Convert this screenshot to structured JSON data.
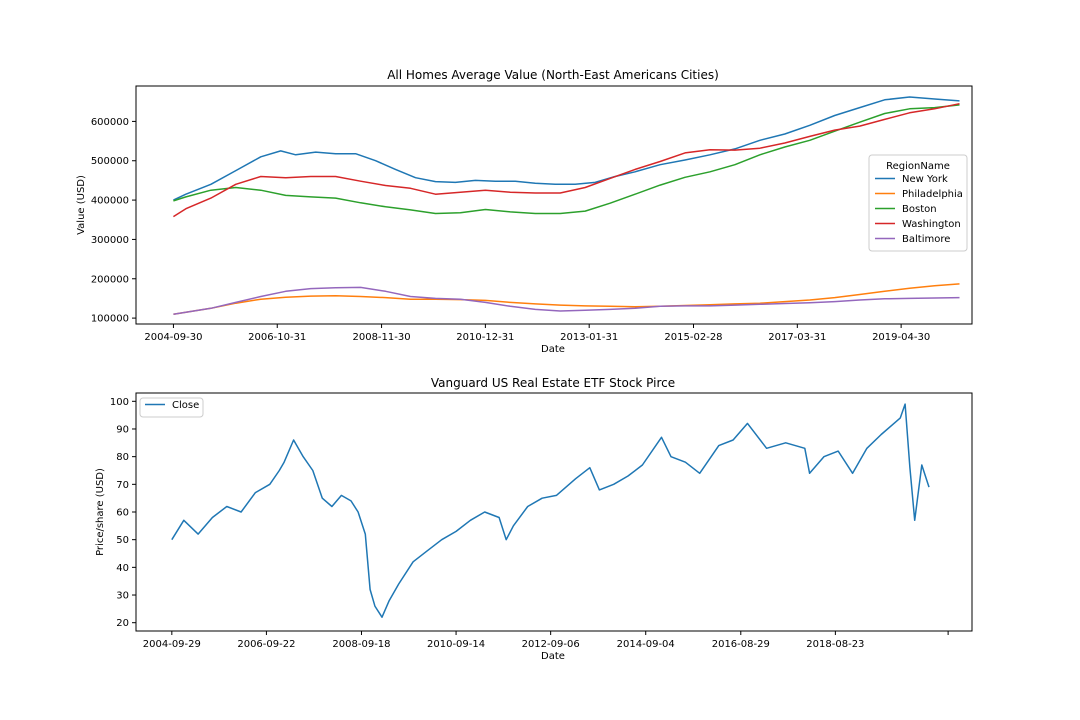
{
  "chart_data": [
    {
      "type": "line",
      "title": "All Homes Average Value (North-East Americans Cities)",
      "xlabel": "Date",
      "ylabel": "Value (USD)",
      "x_tick_labels": [
        "2004-09-30",
        "2006-10-31",
        "2008-11-30",
        "2010-12-31",
        "2013-01-31",
        "2015-02-28",
        "2017-03-31",
        "2019-04-30"
      ],
      "x_ticks": [
        2004.75,
        2006.83,
        2008.92,
        2011.0,
        2013.08,
        2015.17,
        2017.25,
        2019.33
      ],
      "xlim": [
        2004.0,
        2020.75
      ],
      "y_ticks": [
        100000,
        200000,
        300000,
        400000,
        500000,
        600000
      ],
      "y_tick_labels": [
        "100000",
        "200000",
        "300000",
        "400000",
        "500000",
        "600000"
      ],
      "ylim": [
        85000,
        690000
      ],
      "legend": {
        "title": "RegionName",
        "placement": "center-right"
      },
      "grid": false,
      "series": [
        {
          "name": "New York",
          "color": "#1f77b4",
          "x": [
            2004.75,
            2005.0,
            2005.5,
            2006.0,
            2006.5,
            2006.9,
            2007.2,
            2007.6,
            2008.0,
            2008.4,
            2008.8,
            2009.2,
            2009.6,
            2010.0,
            2010.4,
            2010.8,
            2011.2,
            2011.6,
            2012.0,
            2012.4,
            2012.8,
            2013.2,
            2013.6,
            2014.0,
            2014.5,
            2015.0,
            2015.5,
            2016.0,
            2016.5,
            2017.0,
            2017.5,
            2018.0,
            2018.5,
            2019.0,
            2019.5,
            2020.0,
            2020.5
          ],
          "y": [
            400000,
            415000,
            440000,
            475000,
            510000,
            525000,
            515000,
            522000,
            518000,
            518000,
            500000,
            478000,
            457000,
            447000,
            445000,
            450000,
            448000,
            448000,
            443000,
            440000,
            440000,
            445000,
            460000,
            472000,
            490000,
            502000,
            515000,
            530000,
            552000,
            568000,
            590000,
            615000,
            635000,
            655000,
            662000,
            657000,
            652000
          ]
        },
        {
          "name": "Philadelphia",
          "color": "#ff7f0e",
          "x": [
            2004.75,
            2005.5,
            2006.0,
            2006.5,
            2007.0,
            2007.5,
            2008.0,
            2008.5,
            2009.0,
            2009.5,
            2010.0,
            2010.5,
            2011.0,
            2011.5,
            2012.0,
            2012.5,
            2013.0,
            2013.5,
            2014.0,
            2014.5,
            2015.0,
            2015.5,
            2016.0,
            2016.5,
            2017.0,
            2017.5,
            2018.0,
            2018.5,
            2019.0,
            2019.5,
            2020.0,
            2020.5
          ],
          "y": [
            110000,
            125000,
            138000,
            148000,
            153000,
            156000,
            157000,
            155000,
            152000,
            148000,
            148000,
            147000,
            145000,
            140000,
            136000,
            133000,
            131000,
            130000,
            129000,
            130000,
            132000,
            134000,
            136000,
            138000,
            142000,
            146000,
            152000,
            160000,
            168000,
            176000,
            182000,
            187000
          ]
        },
        {
          "name": "Boston",
          "color": "#2ca02c",
          "x": [
            2004.75,
            2005.0,
            2005.5,
            2006.0,
            2006.5,
            2007.0,
            2007.5,
            2008.0,
            2008.5,
            2009.0,
            2009.5,
            2010.0,
            2010.5,
            2011.0,
            2011.5,
            2012.0,
            2012.5,
            2013.0,
            2013.5,
            2014.0,
            2014.5,
            2015.0,
            2015.5,
            2016.0,
            2016.5,
            2017.0,
            2017.5,
            2018.0,
            2018.5,
            2019.0,
            2019.5,
            2020.0,
            2020.5
          ],
          "y": [
            398000,
            408000,
            425000,
            432000,
            425000,
            412000,
            408000,
            405000,
            393000,
            383000,
            375000,
            366000,
            368000,
            376000,
            370000,
            366000,
            366000,
            372000,
            392000,
            415000,
            438000,
            458000,
            472000,
            490000,
            515000,
            535000,
            552000,
            575000,
            598000,
            620000,
            632000,
            635000,
            642000
          ]
        },
        {
          "name": "Washington",
          "color": "#d62728",
          "x": [
            2004.75,
            2005.0,
            2005.5,
            2006.0,
            2006.5,
            2007.0,
            2007.5,
            2008.0,
            2008.5,
            2009.0,
            2009.5,
            2010.0,
            2010.5,
            2011.0,
            2011.5,
            2012.0,
            2012.5,
            2013.0,
            2013.5,
            2014.0,
            2014.5,
            2015.0,
            2015.5,
            2016.0,
            2016.5,
            2017.0,
            2017.5,
            2018.0,
            2018.5,
            2019.0,
            2019.5,
            2020.0,
            2020.5
          ],
          "y": [
            358000,
            378000,
            405000,
            440000,
            460000,
            457000,
            460000,
            460000,
            448000,
            437000,
            430000,
            415000,
            420000,
            425000,
            420000,
            418000,
            418000,
            432000,
            455000,
            478000,
            498000,
            520000,
            528000,
            527000,
            532000,
            545000,
            562000,
            578000,
            588000,
            605000,
            622000,
            632000,
            645000
          ]
        },
        {
          "name": "Baltimore",
          "color": "#9467bd",
          "x": [
            2004.75,
            2005.5,
            2006.0,
            2006.5,
            2007.0,
            2007.5,
            2008.0,
            2008.5,
            2009.0,
            2009.5,
            2010.0,
            2010.5,
            2011.0,
            2011.5,
            2012.0,
            2012.5,
            2013.0,
            2013.5,
            2014.0,
            2014.5,
            2015.0,
            2015.5,
            2016.0,
            2016.5,
            2017.0,
            2017.5,
            2018.0,
            2018.5,
            2019.0,
            2019.5,
            2020.0,
            2020.5
          ],
          "y": [
            110000,
            125000,
            140000,
            155000,
            168000,
            175000,
            177000,
            178000,
            168000,
            155000,
            150000,
            148000,
            140000,
            130000,
            122000,
            118000,
            120000,
            122000,
            125000,
            130000,
            131000,
            131000,
            133000,
            135000,
            137000,
            139000,
            142000,
            146000,
            149000,
            150000,
            151000,
            152000
          ]
        }
      ]
    },
    {
      "type": "line",
      "title": "Vanguard US Real Estate ETF Stock Pirce",
      "xlabel": "Date",
      "ylabel": "Price/share (USD)",
      "x_tick_labels": [
        "2004-09-29",
        "2006-09-22",
        "2008-09-18",
        "2010-09-14",
        "2012-09-06",
        "2014-09-04",
        "2016-08-29",
        "2018-08-23",
        ""
      ],
      "x_ticks": [
        2004.75,
        2006.73,
        2008.72,
        2010.7,
        2012.68,
        2014.67,
        2016.66,
        2018.64,
        2021.0
      ],
      "xlim": [
        2004.0,
        2021.5
      ],
      "y_ticks": [
        20,
        30,
        40,
        50,
        60,
        70,
        80,
        90,
        100
      ],
      "y_tick_labels": [
        "20",
        "30",
        "40",
        "50",
        "60",
        "70",
        "80",
        "90",
        "100"
      ],
      "ylim": [
        17,
        103
      ],
      "legend": {
        "placement": "top-left"
      },
      "grid": false,
      "series": [
        {
          "name": "Close",
          "color": "#1f77b4",
          "x": [
            2004.75,
            2005.0,
            2005.3,
            2005.6,
            2005.9,
            2006.2,
            2006.5,
            2006.8,
            2007.0,
            2007.1,
            2007.3,
            2007.5,
            2007.7,
            2007.9,
            2008.1,
            2008.3,
            2008.5,
            2008.65,
            2008.8,
            2008.9,
            2009.0,
            2009.15,
            2009.3,
            2009.5,
            2009.8,
            2010.1,
            2010.4,
            2010.7,
            2011.0,
            2011.3,
            2011.6,
            2011.75,
            2011.9,
            2012.2,
            2012.5,
            2012.8,
            2013.2,
            2013.5,
            2013.7,
            2014.0,
            2014.3,
            2014.6,
            2015.0,
            2015.2,
            2015.5,
            2015.8,
            2016.2,
            2016.5,
            2016.8,
            2017.2,
            2017.6,
            2018.0,
            2018.1,
            2018.4,
            2018.7,
            2019.0,
            2019.3,
            2019.6,
            2020.0,
            2020.1,
            2020.2,
            2020.3,
            2020.45,
            2020.6
          ],
          "y": [
            50,
            57,
            52,
            58,
            62,
            60,
            67,
            70,
            75,
            78,
            86,
            80,
            75,
            65,
            62,
            66,
            64,
            60,
            52,
            32,
            26,
            22,
            28,
            34,
            42,
            46,
            50,
            53,
            57,
            60,
            58,
            50,
            55,
            62,
            65,
            66,
            72,
            76,
            68,
            70,
            73,
            77,
            87,
            80,
            78,
            74,
            84,
            86,
            92,
            83,
            85,
            83,
            74,
            80,
            82,
            74,
            83,
            88,
            94,
            99,
            76,
            57,
            77,
            69
          ]
        }
      ]
    }
  ]
}
